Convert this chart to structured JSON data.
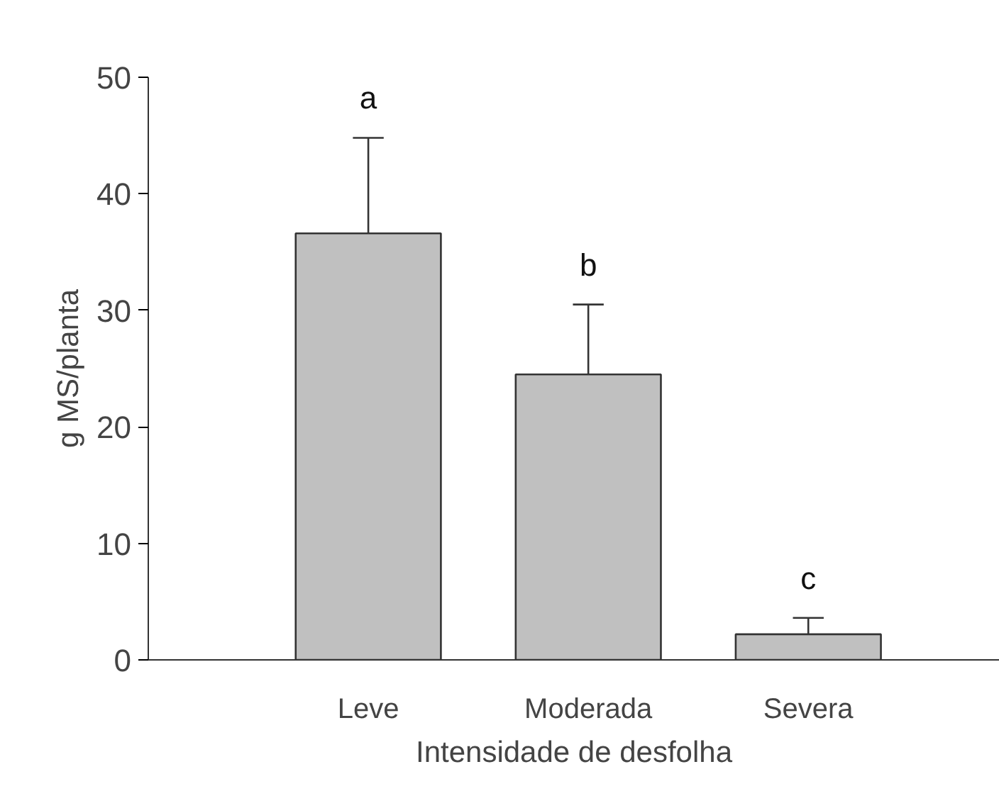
{
  "chart_data": {
    "type": "bar",
    "xlabel": "Intensidade de desfolha",
    "ylabel": "g MS/planta",
    "categories": [
      "Leve",
      "Moderada",
      "Severa"
    ],
    "values": [
      36.6,
      24.5,
      2.2
    ],
    "errors": [
      [
        36.6,
        44.8
      ],
      [
        24.5,
        30.5
      ],
      [
        2.2,
        3.6
      ]
    ],
    "color": "#c0c0c0",
    "ylim": [
      0,
      50
    ],
    "yticks": [
      0,
      10,
      20,
      30,
      40,
      50
    ],
    "grid": false,
    "annotations": [
      "a",
      "b",
      "c"
    ]
  }
}
